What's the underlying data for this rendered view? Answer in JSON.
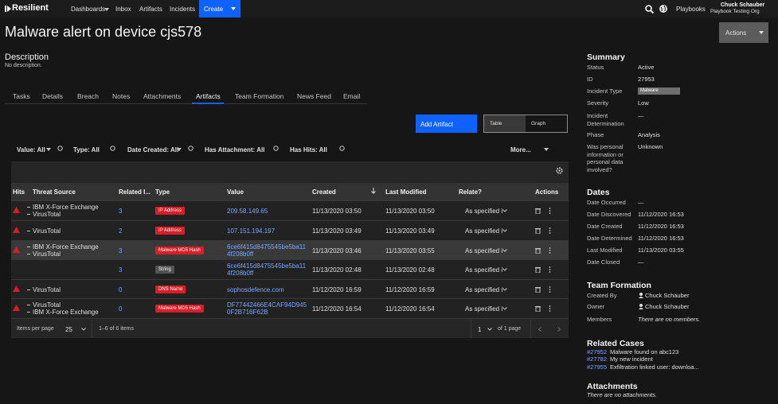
{
  "nav": {
    "brand": "Resilient",
    "items": [
      "Dashboards",
      "Inbox",
      "Artifacts",
      "Incidents"
    ],
    "create": "Create",
    "playbooks": "Playbooks",
    "user": "Chuck Schauber",
    "org": "Playbook Testing Org"
  },
  "header": {
    "title": "Malware alert on device cjs578",
    "actions": "Actions"
  },
  "description": {
    "label": "Description",
    "text": "No description."
  },
  "tabs": {
    "items": [
      "Tasks",
      "Details",
      "Breach",
      "Notes",
      "Attachments",
      "Artifacts",
      "Team Formation",
      "News Feed",
      "Email"
    ],
    "active": 5
  },
  "toolbar": {
    "add": "Add Artifact",
    "views": [
      "Table",
      "Graph"
    ]
  },
  "filters": {
    "items": [
      "Value: All",
      "Type: All",
      "Date Created: All",
      "Has Attachment: All",
      "Has Hits: All"
    ],
    "more": "More..."
  },
  "table": {
    "columns": [
      "Hits",
      "Threat Source",
      "Related I...",
      "Type",
      "Value",
      "Created",
      "Last Modified",
      "Relate?",
      "Actions"
    ],
    "rows": [
      {
        "hit": true,
        "sources": [
          "IBM X-Force Exchange",
          "VirusTotal"
        ],
        "related": 3,
        "type": "IP Address",
        "value": "209.58.149.65",
        "created": "11/13/2020 03:50",
        "modified": "11/13/2020 03:50",
        "relate": "As specified i"
      },
      {
        "hit": true,
        "sources": [
          "VirusTotal"
        ],
        "related": 2,
        "type": "IP Address",
        "value": "107.151.194.197",
        "created": "11/13/2020 03:49",
        "modified": "11/13/2020 03:49",
        "relate": "As specified i"
      },
      {
        "hit": true,
        "sources": [
          "IBM X-Force Exchange",
          "VirusTotal"
        ],
        "related": 3,
        "type": "Malware MD5 Hash",
        "value": "6ce6f415d8475545be5ba114f208b0ff",
        "created": "11/13/2020 03:46",
        "modified": "11/13/2020 03:55",
        "relate": "As specified i"
      },
      {
        "hit": false,
        "sources": [],
        "related": 3,
        "type": "String",
        "value": "6ce6f415d8475545be5ba114f208b0ff",
        "created": "11/13/2020 02:48",
        "modified": "11/13/2020 02:48",
        "relate": "As specified i"
      },
      {
        "hit": true,
        "sources": [
          "VirusTotal"
        ],
        "related": 0,
        "type": "DNS Name",
        "value": "sophosdefence.com",
        "created": "11/12/2020 16:59",
        "modified": "11/12/2020 16:59",
        "relate": "As specified i"
      },
      {
        "hit": true,
        "sources": [
          "VirusTotal",
          "IBM X-Force Exchange"
        ],
        "related": 0,
        "type": "Malware MD5 Hash",
        "value": "DF77442466E4CAF94D9450F2B716F62B",
        "created": "11/12/2020 16:54",
        "modified": "11/12/2020 16:54",
        "relate": "As specified i"
      }
    ],
    "footer": {
      "per_page_label": "Items per page",
      "per_page": "25",
      "range": "1–6 of 6 items",
      "page": "1",
      "pages": "of 1 page"
    }
  },
  "summary": {
    "title": "Summary",
    "fields": [
      [
        "Status",
        "Active"
      ],
      [
        "ID",
        "27953"
      ],
      [
        "Incident Type",
        "Malware"
      ],
      [
        "Severity",
        "Low"
      ],
      [
        "Incident Determination",
        "—"
      ],
      [
        "Phase",
        "Analysis"
      ],
      [
        "Was personal information or personal data involved?",
        "Unknown"
      ]
    ]
  },
  "dates": {
    "title": "Dates",
    "fields": [
      [
        "Date Occurred",
        "—"
      ],
      [
        "Date Discovered",
        "11/12/2020 16:53"
      ],
      [
        "Date Created",
        "11/12/2020 16:53"
      ],
      [
        "Date Determined",
        "11/12/2020 16:53"
      ],
      [
        "Last Modified",
        "11/13/2020 03:55"
      ],
      [
        "Date Closed",
        "—"
      ]
    ]
  },
  "team": {
    "title": "Team Formation",
    "fields": [
      [
        "Created By",
        "Chuck Schauber"
      ],
      [
        "Owner",
        "Chuck Schauber"
      ],
      [
        "Members",
        "There are no members."
      ]
    ]
  },
  "related": {
    "title": "Related Cases",
    "items": [
      [
        "#27952",
        "Malware found on abc123"
      ],
      [
        "#27782",
        "My new incident"
      ],
      [
        "#27955",
        "Exfiltration linked user: downloa..."
      ]
    ]
  },
  "attachments": {
    "title": "Attachments",
    "text": "There are no attachments."
  }
}
